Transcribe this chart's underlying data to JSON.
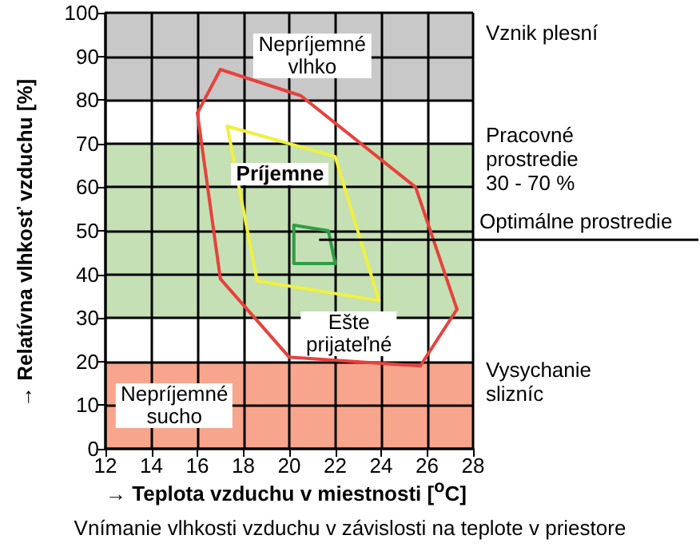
{
  "chart_data": {
    "type": "line",
    "xlabel": "→ Teplota vzduchu v miestnosti [$^{o}$C]",
    "ylabel": "→ Relatívna vlhkosť vzduchu [%]",
    "xlim": [
      12,
      28
    ],
    "xticks": [
      12,
      14,
      16,
      18,
      20,
      22,
      24,
      26,
      28
    ],
    "ylim": [
      0,
      100
    ],
    "yticks": [
      0,
      10,
      20,
      30,
      40,
      50,
      60,
      70,
      80,
      90,
      100
    ],
    "grid": true,
    "marker": "none",
    "line_style": "solid",
    "series": [
      {
        "color": "#e8413c",
        "x": [
          16,
          17,
          20.5,
          25.5,
          27.3
        ],
        "values": [
          77,
          87,
          81,
          60,
          32
        ]
      },
      {
        "color": "#e8413c",
        "x": [
          16,
          17,
          20,
          25.7,
          27.3
        ],
        "values": [
          77,
          39,
          21,
          19,
          32
        ]
      },
      {
        "color": "#f0f040",
        "x": [
          17.3,
          22,
          23.9
        ],
        "values": [
          74,
          67,
          34
        ]
      },
      {
        "color": "#f0f040",
        "x": [
          17.3,
          18.6,
          23.9
        ],
        "values": [
          74,
          38.5,
          34
        ]
      },
      {
        "name": "Optimálne prostredie",
        "color": "#2e9e44",
        "x": [
          20.2,
          21.7,
          22
        ],
        "values": [
          51.3,
          50,
          42.5
        ]
      },
      {
        "color": "#2e9e44",
        "x": [
          20.2,
          20.2,
          22
        ],
        "values": [
          51.3,
          42.5,
          42.5
        ]
      }
    ],
    "bands": [
      {
        "axis": "y",
        "from": 80,
        "to": 100,
        "label": "Vznik plesní",
        "color": "#c8c8c8"
      },
      {
        "axis": "y",
        "from": 30,
        "to": 70,
        "label": "Pracovné\nprostredie\n30 - 70 %",
        "color": "#c5e0b4"
      },
      {
        "axis": "y",
        "from": 0,
        "to": 20,
        "label": "Vysychanie\nslizníc",
        "color": "#f7a58c"
      }
    ],
    "annotations": [
      "Nepríjemné\nvlhko",
      "Príjemne",
      "Ešte\nprijateľné",
      "Nepríjemné\nsucho",
      "Vnímanie vlhkosti vzduchu v závislosti na teplote v priestore"
    ]
  }
}
